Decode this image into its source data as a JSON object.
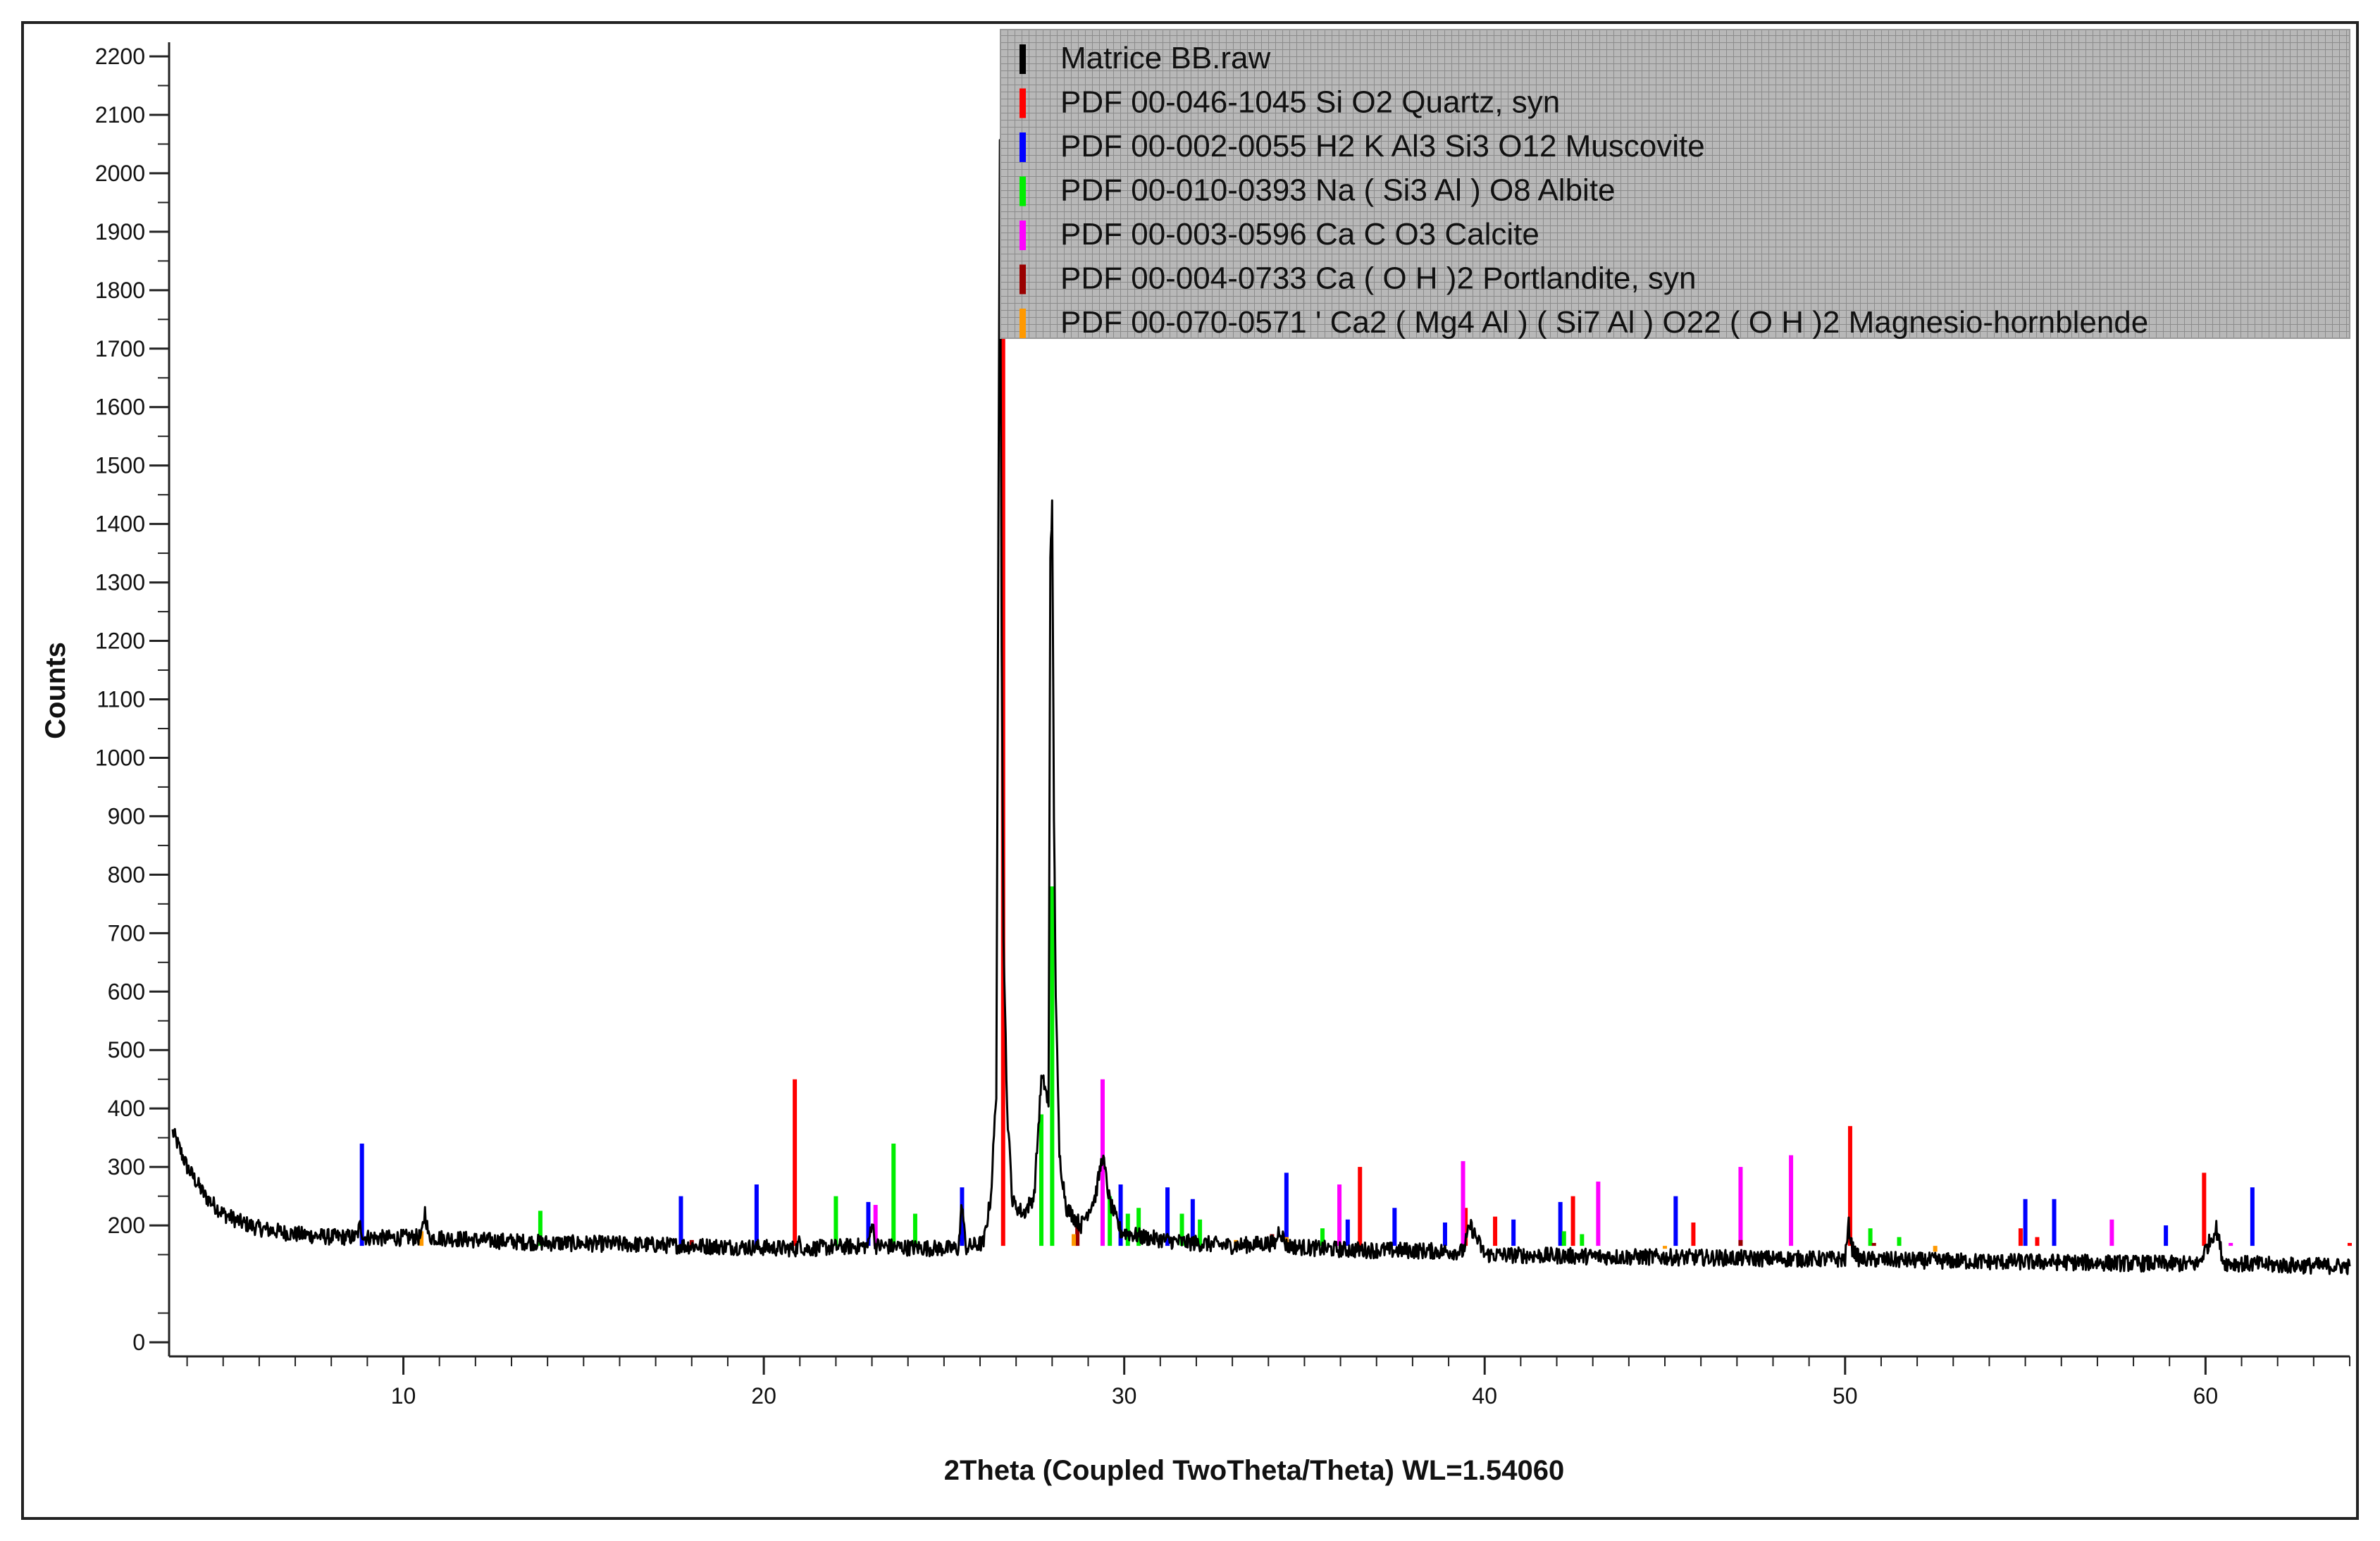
{
  "chart_data": {
    "type": "line",
    "title": "",
    "xlabel": "2Theta (Coupled TwoTheta/Theta) WL=1.54060",
    "ylabel": "Counts",
    "xlim": [
      3.5,
      64
    ],
    "ylim": [
      0,
      2200
    ],
    "xticks": [
      10,
      20,
      30,
      40,
      50,
      60
    ],
    "yticks": [
      200,
      300,
      400,
      500,
      600,
      700,
      800,
      900,
      1000,
      1100,
      1200,
      1300,
      1400,
      1500,
      1600,
      1700,
      1800,
      1900,
      2000,
      2100,
      2200
    ],
    "y_extra_tick": 0,
    "legend_position": "top-right",
    "grid": false,
    "series": [
      {
        "name": "Matrice BB.raw",
        "color": "#000000",
        "kind": "pattern",
        "x": [
          3.6,
          4.0,
          4.5,
          5.0,
          5.5,
          6.0,
          7.0,
          8.0,
          8.7,
          8.8,
          8.9,
          9.5,
          10.5,
          10.6,
          10.7,
          12.0,
          14.0,
          16.0,
          18.0,
          20.0,
          20.9,
          21.0,
          21.1,
          22.0,
          22.9,
          23.0,
          23.1,
          24.0,
          25.4,
          25.5,
          25.6,
          26.1,
          26.3,
          26.45,
          26.55,
          26.6,
          26.65,
          26.75,
          26.9,
          27.2,
          27.5,
          27.7,
          27.8,
          27.9,
          27.95,
          28.0,
          28.05,
          28.1,
          28.2,
          28.4,
          28.8,
          29.2,
          29.4,
          29.6,
          29.9,
          30.5,
          31.5,
          33.0,
          34.2,
          34.3,
          34.5,
          35.5,
          36.5,
          38.0,
          39.4,
          39.6,
          40.0,
          42.0,
          44.0,
          46.0,
          48.0,
          50.0,
          50.1,
          50.2,
          50.4,
          52.0,
          54.0,
          56.0,
          58.0,
          59.8,
          60.3,
          60.5,
          62.0,
          64.0
        ],
        "y": [
          360,
          300,
          250,
          220,
          205,
          195,
          185,
          180,
          180,
          200,
          180,
          178,
          180,
          225,
          180,
          175,
          170,
          168,
          165,
          162,
          160,
          172,
          160,
          163,
          165,
          210,
          165,
          162,
          160,
          240,
          162,
          170,
          250,
          430,
          2050,
          1200,
          700,
          400,
          240,
          220,
          250,
          450,
          440,
          400,
          1350,
          1430,
          900,
          600,
          320,
          230,
          200,
          250,
          320,
          240,
          190,
          180,
          172,
          165,
          170,
          195,
          165,
          160,
          158,
          157,
          155,
          200,
          150,
          148,
          146,
          145,
          143,
          142,
          200,
          160,
          142,
          140,
          138,
          137,
          135,
          134,
          195,
          136,
          132,
          130
        ]
      },
      {
        "name": "PDF 00-046-1045 Si O2 Quartz, syn",
        "color": "#ff0000",
        "kind": "sticks",
        "x": [
          20.86,
          26.64,
          36.54,
          39.47,
          40.29,
          42.45,
          45.79,
          50.14,
          54.87,
          55.33,
          59.96,
          64.0
        ],
        "y": [
          450,
          1980,
          300,
          230,
          215,
          250,
          205,
          370,
          195,
          180,
          290,
          170
        ]
      },
      {
        "name": "PDF 00-002-0055 H2 K Al3 Si3 O12 Muscovite",
        "color": "#0000ff",
        "kind": "sticks",
        "x": [
          8.85,
          17.7,
          19.8,
          22.9,
          25.5,
          29.9,
          31.2,
          31.9,
          34.5,
          36.2,
          37.5,
          38.9,
          40.8,
          42.1,
          45.3,
          55.0,
          55.8,
          58.9,
          61.3
        ],
        "y": [
          340,
          250,
          270,
          240,
          265,
          270,
          265,
          245,
          290,
          210,
          230,
          205,
          210,
          240,
          250,
          245,
          245,
          200,
          265
        ]
      },
      {
        "name": "PDF 00-010-0393 Na ( Si3 Al ) O8 Albite",
        "color": "#00ee00",
        "kind": "sticks",
        "x": [
          13.8,
          22.0,
          23.6,
          24.2,
          27.7,
          28.0,
          29.6,
          30.1,
          30.4,
          31.6,
          32.1,
          35.5,
          42.2,
          42.7,
          50.7,
          51.5
        ],
        "y": [
          225,
          250,
          340,
          220,
          390,
          780,
          250,
          220,
          230,
          220,
          210,
          195,
          190,
          185,
          195,
          180
        ]
      },
      {
        "name": "PDF 00-003-0596 Ca C O3 Calcite",
        "color": "#ff00ff",
        "kind": "sticks",
        "x": [
          23.1,
          29.4,
          35.97,
          39.4,
          43.15,
          47.1,
          48.5,
          57.4,
          60.7
        ],
        "y": [
          235,
          450,
          270,
          310,
          275,
          300,
          320,
          210,
          170
        ]
      },
      {
        "name": "PDF 00-004-0733 Ca ( O H )2 Portlandite, syn",
        "color": "#990000",
        "kind": "sticks",
        "x": [
          18.0,
          28.7,
          34.1,
          47.1,
          50.8
        ],
        "y": [
          175,
          200,
          185,
          175,
          170
        ]
      },
      {
        "name": "PDF 00-070-0571 ' Ca2 ( Mg4 Al ) ( Si7 Al ) O22 ( O H )2 Magnesio-hornblende",
        "color": "#ff9900",
        "kind": "sticks",
        "x": [
          10.5,
          28.6,
          33.1,
          34.5,
          38.0,
          45.0,
          52.5
        ],
        "y": [
          190,
          185,
          175,
          180,
          165,
          160,
          155
        ]
      }
    ]
  }
}
